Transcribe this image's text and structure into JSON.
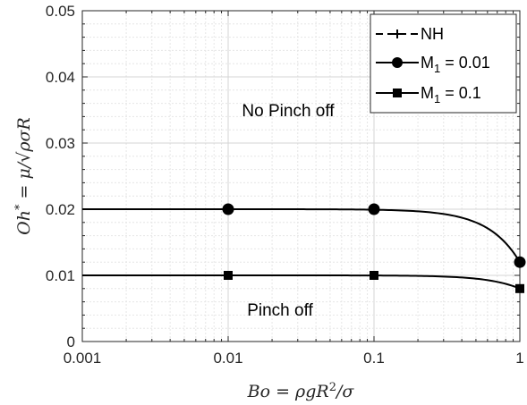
{
  "chart_data": {
    "type": "line",
    "xscale": "log",
    "xlim": [
      0.001,
      1
    ],
    "ylim": [
      0,
      0.05
    ],
    "grid": true,
    "legend_position": "top-right",
    "x_ticks": [
      "0.001",
      "0.01",
      "0.1",
      "1"
    ],
    "y_ticks": [
      "0",
      "0.01",
      "0.02",
      "0.03",
      "0.04",
      "0.05"
    ],
    "xlabel": "Bo = ρgR²/σ",
    "ylabel": "Oh* = μ/√(ρσR)",
    "annotations": [
      "No Pinch off",
      "Pinch off"
    ],
    "series": [
      {
        "name": "NH",
        "marker": "plus",
        "dashed": true,
        "x": [],
        "y": []
      },
      {
        "name": "M₁ = 0.01",
        "marker": "circle",
        "x": [
          0.01,
          0.1,
          1
        ],
        "y": [
          0.02,
          0.02,
          0.012
        ]
      },
      {
        "name": "M₁ = 0.1",
        "marker": "square",
        "x": [
          0.01,
          0.1,
          1
        ],
        "y": [
          0.01,
          0.01,
          0.008
        ]
      }
    ]
  }
}
